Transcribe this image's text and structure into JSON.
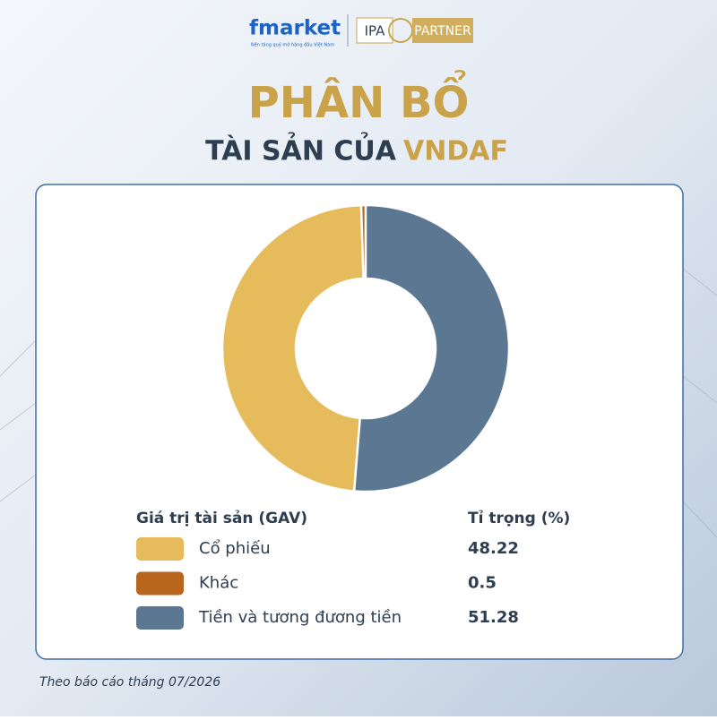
{
  "header": {
    "brand": "fmarket",
    "tagline": "Nền tảng quỹ mở hàng đầu Việt Nam",
    "partner_prefix": "IPA",
    "partner": "PARTNER"
  },
  "chart_data": {
    "type": "pie",
    "title": "PHÂN BỔ",
    "subtitle": "TÀI SẢN CỦA",
    "fund": "VNDAF",
    "legend_title": "Giá trị tài sản (GAV)",
    "value_header": "Tỉ trọng (%)",
    "categories": [
      "Cổ phiếu",
      "Khác",
      "Tiền và tương đương tiền"
    ],
    "values": [
      48.22,
      0.5,
      51.28
    ],
    "colors": [
      "#e6bb5b",
      "#b8661e",
      "#5b7792"
    ]
  },
  "footer": "Theo báo cáo tháng 07/2026"
}
